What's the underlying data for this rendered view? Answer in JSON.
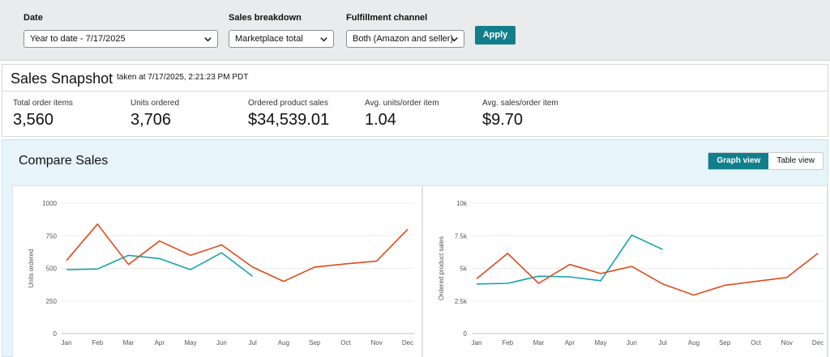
{
  "filters": {
    "date": {
      "label": "Date",
      "value": "Year to date - 7/17/2025"
    },
    "breakdown": {
      "label": "Sales breakdown",
      "value": "Marketplace total"
    },
    "fulfillment": {
      "label": "Fulfillment channel",
      "value": "Both (Amazon and seller)"
    },
    "apply_label": "Apply"
  },
  "snapshot": {
    "title": "Sales Snapshot",
    "taken_at": "taken at 7/17/2025, 2:21:23 PM PDT",
    "metrics": [
      {
        "label": "Total order items",
        "value": "3,560"
      },
      {
        "label": "Units ordered",
        "value": "3,706"
      },
      {
        "label": "Ordered product sales",
        "value": "$34,539.01"
      },
      {
        "label": "Avg. units/order item",
        "value": "1.04"
      },
      {
        "label": "Avg. sales/order item",
        "value": "$9.70"
      }
    ]
  },
  "compare": {
    "title": "Compare Sales",
    "graph_view_label": "Graph view",
    "table_view_label": "Table view"
  },
  "colors": {
    "accent": "#127e8c",
    "series_teal": "#17a2b0",
    "series_orange": "#e04a1c"
  },
  "chart_data": [
    {
      "type": "line",
      "ylabel": "Units ordered",
      "xlabel": "",
      "categories": [
        "Jan",
        "Feb",
        "Mar",
        "Apr",
        "May",
        "Jun",
        "Jul",
        "Aug",
        "Sep",
        "Oct",
        "Nov",
        "Dec"
      ],
      "ylim": [
        0,
        1000
      ],
      "yticks": [
        0,
        250,
        500,
        750,
        1000
      ],
      "ytick_labels": [
        "0",
        "250",
        "500",
        "750",
        "1000"
      ],
      "series": [
        {
          "color": "#17a2b0",
          "values": [
            490,
            495,
            600,
            575,
            490,
            620,
            440,
            null,
            null,
            null,
            null,
            null
          ]
        },
        {
          "color": "#e04a1c",
          "values": [
            560,
            840,
            530,
            710,
            600,
            680,
            510,
            400,
            510,
            535,
            555,
            800
          ]
        }
      ]
    },
    {
      "type": "line",
      "ylabel": "Ordered product sales",
      "xlabel": "",
      "categories": [
        "Jan",
        "Feb",
        "Mar",
        "Apr",
        "May",
        "Jun",
        "Jul",
        "Aug",
        "Sep",
        "Oct",
        "Nov",
        "Dec"
      ],
      "ylim": [
        0,
        10000
      ],
      "yticks": [
        0,
        2500,
        5000,
        7500,
        10000
      ],
      "ytick_labels": [
        "0",
        "2.5k",
        "5k",
        "7.5k",
        "10k"
      ],
      "series": [
        {
          "color": "#17a2b0",
          "values": [
            3800,
            3850,
            4400,
            4350,
            4050,
            7550,
            6450,
            null,
            null,
            null,
            null,
            null
          ]
        },
        {
          "color": "#e04a1c",
          "values": [
            4200,
            6150,
            3850,
            5300,
            4600,
            5150,
            3800,
            2950,
            3700,
            4000,
            4300,
            6150
          ]
        }
      ]
    }
  ]
}
